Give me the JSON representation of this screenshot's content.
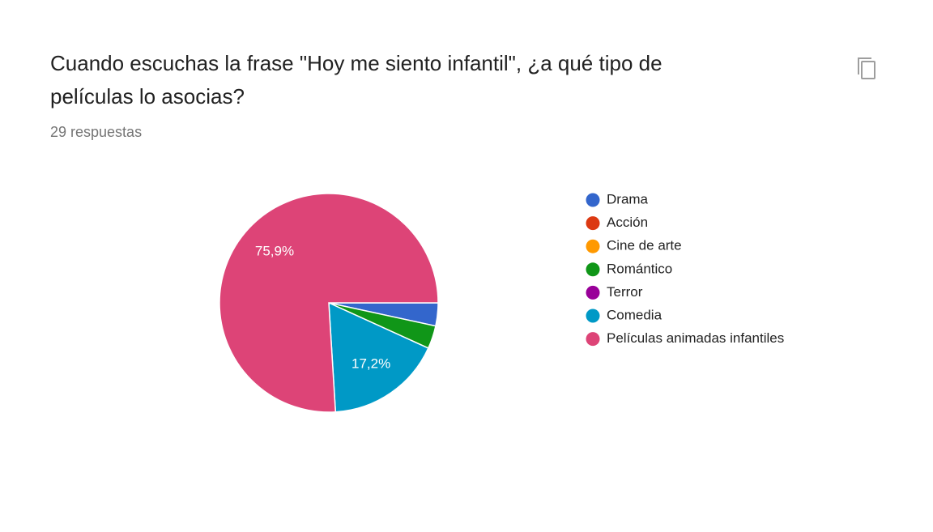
{
  "chart_data": {
    "type": "pie",
    "title": "Cuando escuchas la frase \"Hoy me siento infantil\", ¿a qué tipo de películas lo asocias?",
    "subtitle": "29 respuestas",
    "categories": [
      "Drama",
      "Acción",
      "Cine de arte",
      "Romántico",
      "Terror",
      "Comedia",
      "Películas animadas infantiles"
    ],
    "values": [
      3.4,
      0,
      0,
      3.4,
      0,
      17.2,
      75.9
    ],
    "value_labels": [
      null,
      null,
      null,
      null,
      null,
      "17,2%",
      "75,9%"
    ],
    "colors": [
      "#3366cc",
      "#dc3912",
      "#ff9900",
      "#109618",
      "#990099",
      "#0099c6",
      "#dd4477"
    ],
    "legend": "right"
  }
}
